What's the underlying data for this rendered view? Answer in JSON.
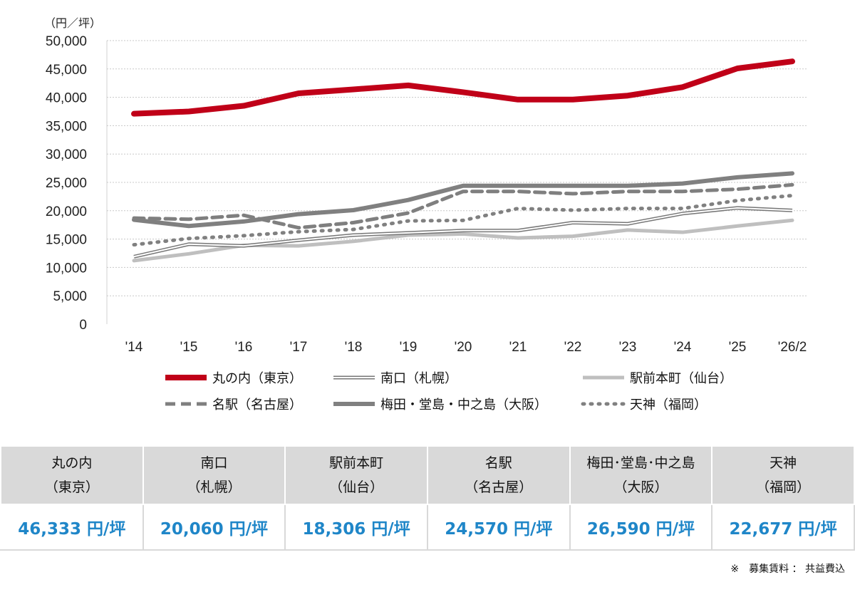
{
  "chart_data": {
    "type": "line",
    "unit_label": "（円／坪）",
    "categories": [
      "'14",
      "'15",
      "'16",
      "'17",
      "'18",
      "'19",
      "'20",
      "'21",
      "'22",
      "'23",
      "'24",
      "'25",
      "'26/2"
    ],
    "ylim": [
      0,
      50000
    ],
    "yticks": [
      "0",
      "5,000",
      "10,000",
      "15,000",
      "20,000",
      "25,000",
      "30,000",
      "35,000",
      "40,000",
      "45,000",
      "50,000"
    ],
    "grid": true,
    "series": [
      {
        "name": "丸の内（東京）",
        "color": "#c00018",
        "style": "thick-solid",
        "values": [
          37100,
          37500,
          38500,
          40700,
          41400,
          42100,
          40900,
          39600,
          39600,
          40300,
          41800,
          45100,
          46333
        ]
      },
      {
        "name": "南口（札幌）",
        "color": "#777777",
        "style": "double",
        "values": [
          11900,
          14100,
          13800,
          14800,
          15700,
          16100,
          16500,
          16500,
          17900,
          17700,
          19500,
          20500,
          20060
        ]
      },
      {
        "name": "駅前本町（仙台）",
        "color": "#bfbfbf",
        "style": "solid",
        "values": [
          11200,
          12400,
          13900,
          13800,
          14600,
          15700,
          15900,
          15200,
          15500,
          16600,
          16200,
          17300,
          18306
        ]
      },
      {
        "name": "名駅（名古屋）",
        "color": "#7f7f7f",
        "style": "dashed",
        "values": [
          18700,
          18500,
          19200,
          17000,
          17900,
          19600,
          23400,
          23400,
          23000,
          23400,
          23400,
          23800,
          24570
        ]
      },
      {
        "name": "梅田・堂島・中之島（大阪）",
        "color": "#808080",
        "style": "thick-solid",
        "values": [
          18400,
          17300,
          18100,
          19400,
          20100,
          21900,
          24400,
          24400,
          24400,
          24400,
          24800,
          25900,
          26590
        ]
      },
      {
        "name": "天神（福岡）",
        "color": "#808080",
        "style": "dotted",
        "values": [
          14000,
          15100,
          15600,
          16300,
          16700,
          18200,
          18300,
          20400,
          20100,
          20400,
          20400,
          21800,
          22677
        ]
      }
    ]
  },
  "table": {
    "headers": [
      {
        "name": "丸の内",
        "area": "（東京）"
      },
      {
        "name": "南口",
        "area": "（札幌）"
      },
      {
        "name": "駅前本町",
        "area": "（仙台）"
      },
      {
        "name": "名駅",
        "area": "（名古屋）"
      },
      {
        "name": "梅田･堂島･中之島",
        "area": "（大阪）"
      },
      {
        "name": "天神",
        "area": "（福岡）"
      }
    ],
    "values": [
      "46,333 円/坪",
      "20,060 円/坪",
      "18,306 円/坪",
      "24,570 円/坪",
      "26,590 円/坪",
      "22,677 円/坪"
    ]
  },
  "note": "※　募集賃料 ： 共益費込"
}
